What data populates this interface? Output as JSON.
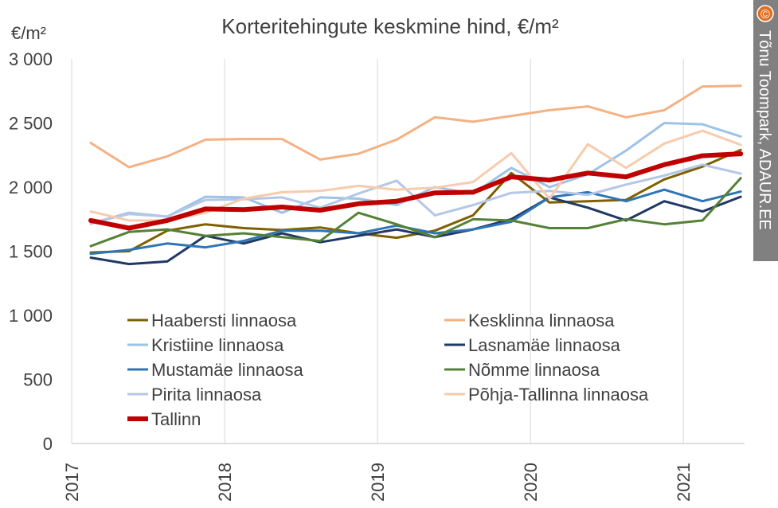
{
  "chart_data": {
    "type": "line",
    "title": "Korteritehingute keskmine hind, €/m²",
    "ylabel": "€/m²",
    "xlabel": "",
    "ylim": [
      0,
      3000
    ],
    "yticks": [
      0,
      500,
      1000,
      1500,
      2000,
      2500,
      3000
    ],
    "ytick_labels": [
      "0",
      "500",
      "1 000",
      "1 500",
      "2 000",
      "2 500",
      "3 000"
    ],
    "xlim": [
      2017.0,
      2021.4
    ],
    "xticks": [
      2017,
      2018,
      2019,
      2020,
      2021
    ],
    "xtick_labels": [
      "2017",
      "2018",
      "2019",
      "2020",
      "2021"
    ],
    "x": [
      2017.125,
      2017.375,
      2017.625,
      2017.875,
      2018.125,
      2018.375,
      2018.625,
      2018.875,
      2019.125,
      2019.375,
      2019.625,
      2019.875,
      2020.125,
      2020.375,
      2020.625,
      2020.875,
      2021.125,
      2021.375
    ],
    "grid": "vertical",
    "legend": "inside-lower-left, two columns",
    "series": [
      {
        "name": "Haabersti linnaosa",
        "color": "#7f6000",
        "width": 3,
        "values": [
          1490,
          1500,
          1660,
          1710,
          1680,
          1665,
          1685,
          1640,
          1605,
          1660,
          1780,
          2110,
          1880,
          1890,
          1900,
          2060,
          2160,
          2290
        ]
      },
      {
        "name": "Kesklinna linnaosa",
        "color": "#f4b183",
        "width": 3,
        "values": [
          2345,
          2155,
          2240,
          2370,
          2375,
          2375,
          2215,
          2260,
          2370,
          2545,
          2510,
          2555,
          2600,
          2630,
          2545,
          2600,
          2785,
          2790
        ]
      },
      {
        "name": "Kristiine linnaosa",
        "color": "#9dc3e6",
        "width": 3,
        "values": [
          1715,
          1800,
          1770,
          1925,
          1920,
          1800,
          1920,
          1910,
          1860,
          2000,
          1950,
          2150,
          2000,
          2100,
          2285,
          2500,
          2490,
          2395
        ]
      },
      {
        "name": "Lasnamäe linnaosa",
        "color": "#203864",
        "width": 3,
        "values": [
          1450,
          1400,
          1420,
          1620,
          1560,
          1640,
          1570,
          1620,
          1670,
          1610,
          1670,
          1750,
          1920,
          1840,
          1740,
          1890,
          1810,
          1925
        ]
      },
      {
        "name": "Mustamäe linnaosa",
        "color": "#2e75b6",
        "width": 3,
        "values": [
          1480,
          1510,
          1560,
          1530,
          1580,
          1660,
          1660,
          1640,
          1700,
          1640,
          1670,
          1730,
          1920,
          1960,
          1890,
          1980,
          1890,
          1965
        ]
      },
      {
        "name": "Nõmme linnaosa",
        "color": "#548235",
        "width": 3,
        "values": [
          1540,
          1650,
          1670,
          1620,
          1640,
          1610,
          1580,
          1800,
          1710,
          1610,
          1750,
          1740,
          1680,
          1680,
          1750,
          1710,
          1740,
          2070
        ]
      },
      {
        "name": "Pirita linnaosa",
        "color": "#b4c7e7",
        "width": 3,
        "values": [
          1720,
          1790,
          1770,
          1900,
          1905,
          1920,
          1840,
          1950,
          2050,
          1780,
          1860,
          1955,
          1970,
          1940,
          2020,
          2090,
          2175,
          2105
        ]
      },
      {
        "name": "Põhja-Tallinna linnaosa",
        "color": "#f8cbad",
        "width": 3,
        "values": [
          1810,
          1740,
          1740,
          1800,
          1910,
          1960,
          1970,
          2010,
          1980,
          1995,
          2040,
          2265,
          1910,
          2335,
          2150,
          2340,
          2440,
          2330
        ]
      },
      {
        "name": "Tallinn",
        "color": "#c00000",
        "width": 6,
        "values": [
          1740,
          1680,
          1740,
          1830,
          1825,
          1845,
          1820,
          1870,
          1890,
          1955,
          1960,
          2080,
          2055,
          2110,
          2080,
          2175,
          2245,
          2260
        ]
      }
    ]
  },
  "credit": {
    "copyright_symbol": "©",
    "text": "Tõnu Toompark, ADAUR.EE"
  }
}
